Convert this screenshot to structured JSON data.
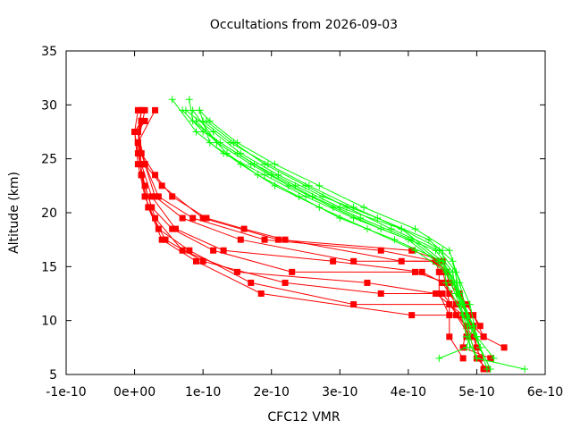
{
  "chart_data": {
    "type": "line",
    "title": "Occultations from 2026-09-03",
    "xlabel": "CFC12 VMR",
    "ylabel": "Altitude (km)",
    "xlim": [
      -1e-10,
      6e-10
    ],
    "ylim": [
      5,
      35
    ],
    "x_ticks": [
      -1e-10,
      0,
      1e-10,
      2e-10,
      3e-10,
      4e-10,
      5e-10,
      6e-10
    ],
    "x_tick_labels": [
      "-1e-10",
      "0e+00",
      "1e-10",
      "2e-10",
      "3e-10",
      "4e-10",
      "5e-10",
      "6e-10"
    ],
    "y_ticks": [
      5,
      10,
      15,
      20,
      25,
      30,
      35
    ],
    "y_tick_labels": [
      "5",
      "10",
      "15",
      "20",
      "25",
      "30",
      "35"
    ],
    "grid": false,
    "legend": "none",
    "series_groups": [
      {
        "color": "#ff0000",
        "marker": "square",
        "profiles": [
          [
            [
              5.15e-10,
              5.5
            ],
            [
              5e-10,
              6.5
            ],
            [
              4.9e-10,
              8.5
            ],
            [
              4.7e-10,
              10.5
            ],
            [
              4.05e-10,
              10.5
            ],
            [
              1.85e-10,
              12.5
            ],
            [
              9e-11,
              15.5
            ],
            [
              4e-11,
              17.5
            ],
            [
              2e-11,
              20.5
            ],
            [
              1e-11,
              23.5
            ],
            [
              5e-12,
              26.5
            ],
            [
              1e-11,
              29.5
            ]
          ],
          [
            [
              5.1e-10,
              5.5
            ],
            [
              5.05e-10,
              6.5
            ],
            [
              4.95e-10,
              8.5
            ],
            [
              4.6e-10,
              11.5
            ],
            [
              3.2e-10,
              11.5
            ],
            [
              1.7e-10,
              13.5
            ],
            [
              8e-11,
              16.5
            ],
            [
              3.5e-11,
              18.5
            ],
            [
              1.5e-11,
              21.5
            ],
            [
              5e-12,
              24.5
            ],
            [
              0.0,
              27.5
            ],
            [
              5e-12,
              29.5
            ]
          ],
          [
            [
              5.2e-10,
              6.5
            ],
            [
              4.8e-10,
              7.5
            ],
            [
              4.85e-10,
              9.5
            ],
            [
              4.5e-10,
              12.5
            ],
            [
              3.6e-10,
              12.5
            ],
            [
              2.2e-10,
              13.5
            ],
            [
              1e-10,
              15.5
            ],
            [
              4.5e-11,
              17.5
            ],
            [
              2e-11,
              20.5
            ],
            [
              1e-11,
              23.5
            ],
            [
              5e-12,
              26.5
            ],
            [
              1.5e-11,
              29.5
            ]
          ],
          [
            [
              5.4e-10,
              7.5
            ],
            [
              5.1e-10,
              8.5
            ],
            [
              4.8e-10,
              10.5
            ],
            [
              4.4e-10,
              12.5
            ],
            [
              3.4e-10,
              13.5
            ],
            [
              1.5e-10,
              14.5
            ],
            [
              7e-11,
              16.5
            ],
            [
              3e-11,
              19.5
            ],
            [
              1.5e-11,
              22.5
            ],
            [
              5e-12,
              25.5
            ],
            [
              0.0,
              27.5
            ],
            [
              1e-11,
              28.5
            ]
          ],
          [
            [
              4.8e-10,
              6.5
            ],
            [
              4.6e-10,
              8.5
            ],
            [
              4.6e-10,
              11.5
            ],
            [
              4.55e-10,
              13.5
            ],
            [
              4.1e-10,
              14.5
            ],
            [
              2.3e-10,
              14.5
            ],
            [
              1.15e-10,
              16.5
            ],
            [
              5.5e-11,
              18.5
            ],
            [
              2.5e-11,
              20.5
            ],
            [
              1e-11,
              23.5
            ],
            [
              5e-12,
              26.5
            ],
            [
              3e-11,
              29.5
            ]
          ],
          [
            [
              5e-10,
              7.5
            ],
            [
              4.95e-10,
              9.5
            ],
            [
              4.7e-10,
              11.5
            ],
            [
              4.5e-10,
              13.5
            ],
            [
              4.2e-10,
              14.5
            ],
            [
              2.9e-10,
              15.5
            ],
            [
              1.3e-10,
              16.5
            ],
            [
              6e-11,
              18.5
            ],
            [
              2.5e-11,
              21.5
            ],
            [
              1e-11,
              24.5
            ],
            [
              5e-12,
              27.5
            ],
            [
              1e-11,
              28.5
            ]
          ],
          [
            [
              5.1e-10,
              8.5
            ],
            [
              4.95e-10,
              10.5
            ],
            [
              4.75e-10,
              12.5
            ],
            [
              4.55e-10,
              14.5
            ],
            [
              4.4e-10,
              15.5
            ],
            [
              3.2e-10,
              15.5
            ],
            [
              1.55e-10,
              17.5
            ],
            [
              7e-11,
              19.5
            ],
            [
              3e-11,
              21.5
            ],
            [
              1.5e-11,
              24.5
            ],
            [
              5e-12,
              27.5
            ],
            [
              1.5e-11,
              28.5
            ]
          ],
          [
            [
              4.85e-10,
              8.5
            ],
            [
              4.9e-10,
              10.5
            ],
            [
              4.6e-10,
              12.5
            ],
            [
              4.5e-10,
              14.5
            ],
            [
              4.4e-10,
              15.5
            ],
            [
              3.6e-10,
              16.5
            ],
            [
              1.9e-10,
              17.5
            ],
            [
              8.5e-11,
              19.5
            ],
            [
              3.5e-11,
              21.5
            ],
            [
              1.5e-11,
              24.5
            ],
            [
              5e-12,
              27.5
            ],
            [
              1e-11,
              29.5
            ]
          ],
          [
            [
              5.05e-10,
              9.5
            ],
            [
              4.85e-10,
              11.5
            ],
            [
              4.6e-10,
              13.5
            ],
            [
              4.5e-10,
              15.5
            ],
            [
              4.05e-10,
              16.5
            ],
            [
              2.1e-10,
              17.5
            ],
            [
              1e-10,
              19.5
            ],
            [
              4e-11,
              22.5
            ],
            [
              1.5e-11,
              24.5
            ],
            [
              5e-12,
              26.5
            ],
            [
              1e-11,
              28.5
            ]
          ],
          [
            [
              4.6e-10,
              10.5
            ],
            [
              4.45e-10,
              12.5
            ],
            [
              4.45e-10,
              14.5
            ],
            [
              4.4e-10,
              15.5
            ],
            [
              3.9e-10,
              15.5
            ],
            [
              2.2e-10,
              17.5
            ],
            [
              1.6e-10,
              18.5
            ],
            [
              1.05e-10,
              19.5
            ],
            [
              5.5e-11,
              21.5
            ],
            [
              3e-11,
              23.5
            ],
            [
              1e-11,
              25.5
            ],
            [
              5e-12,
              27.5
            ]
          ]
        ]
      },
      {
        "color": "#00ff00",
        "marker": "plus",
        "profiles": [
          [
            [
              4.45e-10,
              6.5
            ],
            [
              4.85e-10,
              7.5
            ],
            [
              4.95e-10,
              9.5
            ],
            [
              4.8e-10,
              11.5
            ],
            [
              4.6e-10,
              14.5
            ],
            [
              4e-10,
              17.5
            ],
            [
              3.2e-10,
              19.5
            ],
            [
              2.5e-10,
              21.5
            ],
            [
              1.9e-10,
              23.5
            ],
            [
              1.3e-10,
              25.5
            ],
            [
              9e-11,
              27.5
            ],
            [
              5.5e-11,
              30.5
            ]
          ],
          [
            [
              5.15e-10,
              5.5
            ],
            [
              5.05e-10,
              7.5
            ],
            [
              4.9e-10,
              9.5
            ],
            [
              4.75e-10,
              12.5
            ],
            [
              4.5e-10,
              15.5
            ],
            [
              3.9e-10,
              18.5
            ],
            [
              3e-10,
              20.5
            ],
            [
              2.35e-10,
              22.5
            ],
            [
              1.75e-10,
              24.5
            ],
            [
              1.25e-10,
              26.5
            ],
            [
              8.5e-11,
              28.5
            ],
            [
              8e-11,
              30.5
            ]
          ],
          [
            [
              5.7e-10,
              5.5
            ],
            [
              5e-10,
              6.5
            ],
            [
              4.85e-10,
              8.5
            ],
            [
              4.75e-10,
              11.5
            ],
            [
              4.55e-10,
              14.5
            ],
            [
              4.1e-10,
              16.5
            ],
            [
              3.4e-10,
              18.5
            ],
            [
              2.7e-10,
              20.5
            ],
            [
              2.05e-10,
              22.5
            ],
            [
              1.55e-10,
              24.5
            ],
            [
              1.1e-10,
              26.5
            ],
            [
              9.5e-11,
              29.5
            ]
          ],
          [
            [
              5.25e-10,
              6.5
            ],
            [
              5e-10,
              8.5
            ],
            [
              4.8e-10,
              10.5
            ],
            [
              4.7e-10,
              13.5
            ],
            [
              4.5e-10,
              15.5
            ],
            [
              3.8e-10,
              17.5
            ],
            [
              3e-10,
              19.5
            ],
            [
              2.4e-10,
              21.5
            ],
            [
              1.8e-10,
              23.5
            ],
            [
              1.35e-10,
              25.5
            ],
            [
              9e-11,
              28.5
            ]
          ],
          [
            [
              5.05e-10,
              7.5
            ],
            [
              4.95e-10,
              9.5
            ],
            [
              4.7e-10,
              12.5
            ],
            [
              4.65e-10,
              14.5
            ],
            [
              4.4e-10,
              16.5
            ],
            [
              3.6e-10,
              18.5
            ],
            [
              2.9e-10,
              20.5
            ],
            [
              2.25e-10,
              22.5
            ],
            [
              1.7e-10,
              24.5
            ],
            [
              1.2e-10,
              26.5
            ],
            [
              8.5e-11,
              29.5
            ]
          ],
          [
            [
              4.9e-10,
              7.5
            ],
            [
              4.85e-10,
              10.5
            ],
            [
              4.65e-10,
              13.5
            ],
            [
              4.45e-10,
              15.5
            ],
            [
              4.05e-10,
              17.5
            ],
            [
              3.3e-10,
              19.5
            ],
            [
              2.6e-10,
              21.5
            ],
            [
              2e-10,
              23.5
            ],
            [
              1.5e-10,
              25.5
            ],
            [
              1e-10,
              27.5
            ],
            [
              7e-11,
              29.5
            ]
          ],
          [
            [
              5e-10,
              8.5
            ],
            [
              4.9e-10,
              11.5
            ],
            [
              4.7e-10,
              14.5
            ],
            [
              4.45e-10,
              16.5
            ],
            [
              3.75e-10,
              18.5
            ],
            [
              3.1e-10,
              20.5
            ],
            [
              2.5e-10,
              22.5
            ],
            [
              1.9e-10,
              24.5
            ],
            [
              1.45e-10,
              26.5
            ],
            [
              1.05e-10,
              28.5
            ]
          ],
          [
            [
              4.95e-10,
              9.5
            ],
            [
              4.75e-10,
              12.5
            ],
            [
              4.65e-10,
              15.5
            ],
            [
              4.3e-10,
              17.5
            ],
            [
              3.55e-10,
              19.5
            ],
            [
              2.75e-10,
              21.5
            ],
            [
              2.1e-10,
              23.5
            ],
            [
              1.55e-10,
              25.5
            ],
            [
              1.15e-10,
              27.5
            ],
            [
              7.5e-11,
              29.5
            ]
          ],
          [
            [
              5e-10,
              6.5
            ],
            [
              4.8e-10,
              10.5
            ],
            [
              4.55e-10,
              13.5
            ],
            [
              4.5e-10,
              16.5
            ],
            [
              3.9e-10,
              18.5
            ],
            [
              3.2e-10,
              20.5
            ],
            [
              2.55e-10,
              22.5
            ],
            [
              1.95e-10,
              24.5
            ],
            [
              1.4e-10,
              26.5
            ],
            [
              1e-10,
              28.5
            ]
          ],
          [
            [
              5.2e-10,
              5.5
            ],
            [
              4.9e-10,
              9.5
            ],
            [
              4.75e-10,
              13.5
            ],
            [
              4.6e-10,
              16.5
            ],
            [
              4.1e-10,
              18.5
            ],
            [
              3.35e-10,
              20.5
            ],
            [
              2.7e-10,
              22.5
            ],
            [
              2.05e-10,
              24.5
            ],
            [
              1.5e-10,
              26.5
            ],
            [
              1.1e-10,
              28.5
            ],
            [
              9.5e-11,
              29.5
            ]
          ]
        ]
      }
    ]
  }
}
